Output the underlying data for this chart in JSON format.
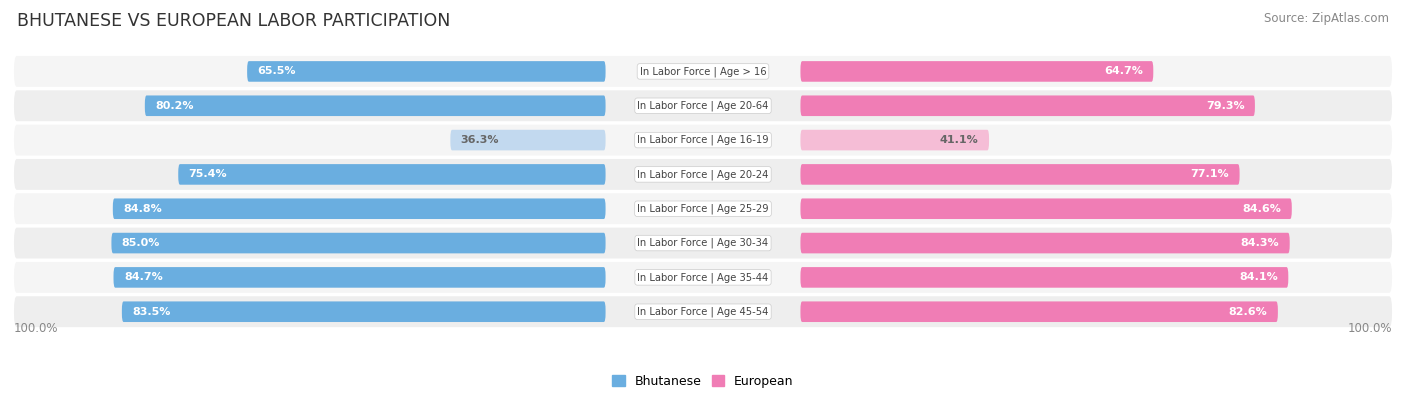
{
  "title": "BHUTANESE VS EUROPEAN LABOR PARTICIPATION",
  "source": "Source: ZipAtlas.com",
  "categories": [
    "In Labor Force | Age > 16",
    "In Labor Force | Age 20-64",
    "In Labor Force | Age 16-19",
    "In Labor Force | Age 20-24",
    "In Labor Force | Age 25-29",
    "In Labor Force | Age 30-34",
    "In Labor Force | Age 35-44",
    "In Labor Force | Age 45-54"
  ],
  "bhutanese_values": [
    65.5,
    80.2,
    36.3,
    75.4,
    84.8,
    85.0,
    84.7,
    83.5
  ],
  "european_values": [
    64.7,
    79.3,
    41.1,
    77.1,
    84.6,
    84.3,
    84.1,
    82.6
  ],
  "bhutanese_color_full": "#6aaee0",
  "bhutanese_color_light": "#c2d9ef",
  "european_color_full": "#f07db5",
  "european_color_light": "#f5bdd6",
  "row_bg_odd": "#f5f5f5",
  "row_bg_even": "#eeeeee",
  "title_color": "#333333",
  "background_color": "#ffffff",
  "center_label_color": "#444444",
  "value_label_white": "#ffffff",
  "value_label_dark": "#666666",
  "legend_bhutanese": "Bhutanese",
  "legend_european": "European",
  "bottom_label_color": "#888888",
  "source_color": "#888888"
}
